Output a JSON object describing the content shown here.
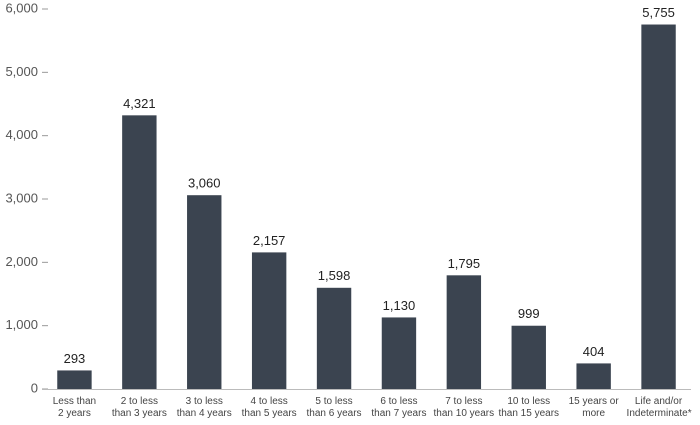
{
  "chart_data": {
    "type": "bar",
    "categories": [
      "Less than\n2 years",
      "2 to less\nthan 3 years",
      "3 to less\nthan 4 years",
      "4 to less\nthan 5 years",
      "5 to less\nthan 6 years",
      "6 to less\nthan 7 years",
      "7 to less\nthan 10 years",
      "10 to less\nthan 15 years",
      "15 years or\nmore",
      "Life and/or\nIndeterminate*"
    ],
    "values": [
      293,
      4321,
      3060,
      2157,
      1598,
      1130,
      1795,
      999,
      404,
      5755
    ],
    "value_labels": [
      "293",
      "4,321",
      "3,060",
      "2,157",
      "1,598",
      "1,130",
      "1,795",
      "999",
      "404",
      "5,755"
    ],
    "color": "#3b4450",
    "ylim": [
      0,
      6000
    ],
    "yticks": [
      0,
      {
        "value": 1000,
        "label": "1,000"
      },
      {
        "value": 2000,
        "label": "2,000"
      },
      {
        "value": 3000,
        "label": "3,000"
      },
      {
        "value": 4000,
        "label": "4,000"
      },
      {
        "value": 5000,
        "label": "5,000"
      },
      {
        "value": 6000,
        "label": "6,000"
      }
    ],
    "grid": false
  }
}
